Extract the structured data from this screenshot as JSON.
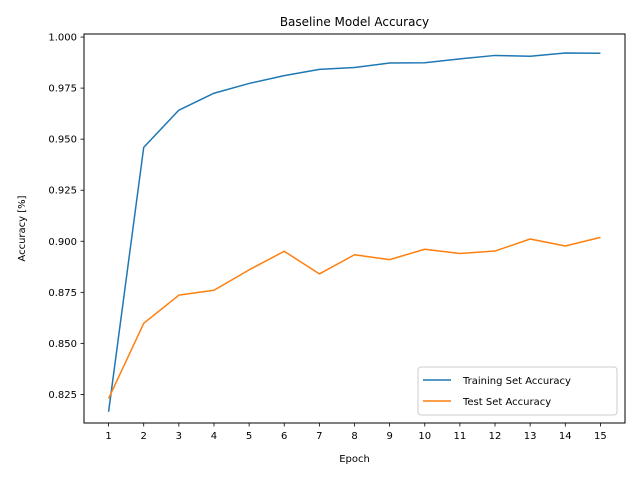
{
  "chart_data": {
    "type": "line",
    "title": "Baseline Model Accuracy",
    "xlabel": "Epoch",
    "ylabel": "Accuracy [%]",
    "x": [
      1,
      2,
      3,
      4,
      5,
      6,
      7,
      8,
      9,
      10,
      11,
      12,
      13,
      14,
      15
    ],
    "xticks": [
      "1",
      "2",
      "3",
      "4",
      "5",
      "6",
      "7",
      "8",
      "9",
      "10",
      "11",
      "12",
      "13",
      "14",
      "15"
    ],
    "yticks": [
      "0.825",
      "0.850",
      "0.875",
      "0.900",
      "0.925",
      "0.950",
      "0.975",
      "1.000"
    ],
    "ylim": [
      0.811,
      1.0015
    ],
    "xlim": [
      0.3,
      15.7
    ],
    "grid": false,
    "legend_position": "lower-right",
    "series": [
      {
        "name": "Training Set Accuracy",
        "color": "#1f77b4",
        "values": [
          0.8165,
          0.946,
          0.9642,
          0.9725,
          0.9773,
          0.9811,
          0.9842,
          0.9851,
          0.9873,
          0.9874,
          0.9893,
          0.991,
          0.9906,
          0.9922,
          0.9921
        ]
      },
      {
        "name": "Test Set Accuracy",
        "color": "#ff7f0e",
        "values": [
          0.823,
          0.8598,
          0.8736,
          0.876,
          0.886,
          0.8951,
          0.884,
          0.8934,
          0.891,
          0.8961,
          0.894,
          0.8952,
          0.9011,
          0.8977,
          0.9019
        ]
      }
    ]
  }
}
